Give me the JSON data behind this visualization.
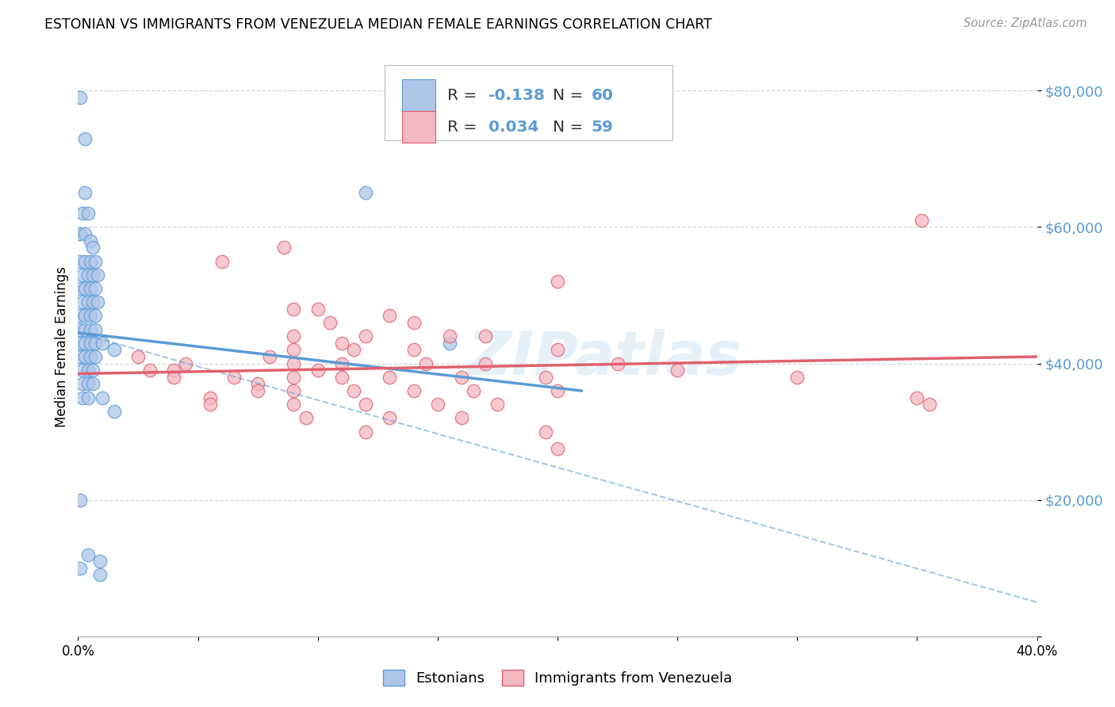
{
  "title": "ESTONIAN VS IMMIGRANTS FROM VENEZUELA MEDIAN FEMALE EARNINGS CORRELATION CHART",
  "source": "Source: ZipAtlas.com",
  "ylabel": "Median Female Earnings",
  "y_ticks": [
    0,
    20000,
    40000,
    60000,
    80000
  ],
  "y_tick_labels": [
    "",
    "$20,000",
    "$40,000",
    "$60,000",
    "$80,000"
  ],
  "x_min": 0.0,
  "x_max": 0.4,
  "y_min": 0,
  "y_max": 85000,
  "legend_labels": [
    "Estonians",
    "Immigrants from Venezuela"
  ],
  "blue_color": "#5b9bd5",
  "pink_color": "#e06070",
  "blue_fill": "#aec6e8",
  "pink_fill": "#f4b8c1",
  "blue_R": "-0.138",
  "blue_N": "60",
  "pink_R": "0.034",
  "pink_N": "59",
  "trend_blue_x0": 0.0,
  "trend_blue_y0": 44500,
  "trend_blue_x1": 0.21,
  "trend_blue_y1": 36000,
  "trend_dashed_x0": 0.0,
  "trend_dashed_y0": 44500,
  "trend_dashed_x1": 0.4,
  "trend_dashed_y1": 5000,
  "trend_pink_x0": 0.0,
  "trend_pink_y0": 38500,
  "trend_pink_x1": 0.4,
  "trend_pink_y1": 41000,
  "watermark": "ZIPatlas",
  "blue_points": [
    [
      0.001,
      79000
    ],
    [
      0.003,
      73000
    ],
    [
      0.003,
      65000
    ],
    [
      0.002,
      62000
    ],
    [
      0.004,
      62000
    ],
    [
      0.001,
      59000
    ],
    [
      0.003,
      59000
    ],
    [
      0.005,
      58000
    ],
    [
      0.006,
      57000
    ],
    [
      0.001,
      55000
    ],
    [
      0.003,
      55000
    ],
    [
      0.005,
      55000
    ],
    [
      0.007,
      55000
    ],
    [
      0.002,
      53000
    ],
    [
      0.004,
      53000
    ],
    [
      0.006,
      53000
    ],
    [
      0.008,
      53000
    ],
    [
      0.001,
      51000
    ],
    [
      0.003,
      51000
    ],
    [
      0.005,
      51000
    ],
    [
      0.007,
      51000
    ],
    [
      0.002,
      49000
    ],
    [
      0.004,
      49000
    ],
    [
      0.006,
      49000
    ],
    [
      0.008,
      49000
    ],
    [
      0.001,
      47000
    ],
    [
      0.003,
      47000
    ],
    [
      0.005,
      47000
    ],
    [
      0.007,
      47000
    ],
    [
      0.001,
      45000
    ],
    [
      0.003,
      45000
    ],
    [
      0.005,
      45000
    ],
    [
      0.007,
      45000
    ],
    [
      0.001,
      43000
    ],
    [
      0.003,
      43000
    ],
    [
      0.005,
      43000
    ],
    [
      0.007,
      43000
    ],
    [
      0.001,
      41000
    ],
    [
      0.003,
      41000
    ],
    [
      0.005,
      41000
    ],
    [
      0.007,
      41000
    ],
    [
      0.002,
      39000
    ],
    [
      0.004,
      39000
    ],
    [
      0.006,
      39000
    ],
    [
      0.002,
      37000
    ],
    [
      0.004,
      37000
    ],
    [
      0.006,
      37000
    ],
    [
      0.002,
      35000
    ],
    [
      0.004,
      35000
    ],
    [
      0.01,
      43000
    ],
    [
      0.015,
      42000
    ],
    [
      0.01,
      35000
    ],
    [
      0.015,
      33000
    ],
    [
      0.001,
      20000
    ],
    [
      0.004,
      12000
    ],
    [
      0.009,
      11000
    ],
    [
      0.001,
      10000
    ],
    [
      0.009,
      9000
    ],
    [
      0.12,
      65000
    ],
    [
      0.155,
      43000
    ]
  ],
  "pink_points": [
    [
      0.352,
      61000
    ],
    [
      0.086,
      57000
    ],
    [
      0.06,
      55000
    ],
    [
      0.2,
      52000
    ],
    [
      0.09,
      48000
    ],
    [
      0.1,
      48000
    ],
    [
      0.13,
      47000
    ],
    [
      0.105,
      46000
    ],
    [
      0.14,
      46000
    ],
    [
      0.09,
      44000
    ],
    [
      0.12,
      44000
    ],
    [
      0.155,
      44000
    ],
    [
      0.17,
      44000
    ],
    [
      0.09,
      42000
    ],
    [
      0.115,
      42000
    ],
    [
      0.14,
      42000
    ],
    [
      0.2,
      42000
    ],
    [
      0.09,
      40000
    ],
    [
      0.11,
      40000
    ],
    [
      0.145,
      40000
    ],
    [
      0.17,
      40000
    ],
    [
      0.225,
      40000
    ],
    [
      0.09,
      38000
    ],
    [
      0.11,
      38000
    ],
    [
      0.13,
      38000
    ],
    [
      0.16,
      38000
    ],
    [
      0.195,
      38000
    ],
    [
      0.09,
      36000
    ],
    [
      0.115,
      36000
    ],
    [
      0.14,
      36000
    ],
    [
      0.165,
      36000
    ],
    [
      0.2,
      36000
    ],
    [
      0.09,
      34000
    ],
    [
      0.12,
      34000
    ],
    [
      0.15,
      34000
    ],
    [
      0.175,
      34000
    ],
    [
      0.095,
      32000
    ],
    [
      0.13,
      32000
    ],
    [
      0.16,
      32000
    ],
    [
      0.12,
      30000
    ],
    [
      0.195,
      30000
    ],
    [
      0.2,
      27500
    ],
    [
      0.045,
      40000
    ],
    [
      0.065,
      38000
    ],
    [
      0.075,
      37000
    ],
    [
      0.075,
      36000
    ],
    [
      0.055,
      35000
    ],
    [
      0.055,
      34000
    ],
    [
      0.04,
      39000
    ],
    [
      0.04,
      38000
    ],
    [
      0.08,
      41000
    ],
    [
      0.1,
      39000
    ],
    [
      0.11,
      43000
    ],
    [
      0.025,
      41000
    ],
    [
      0.03,
      39000
    ],
    [
      0.35,
      35000
    ],
    [
      0.355,
      34000
    ],
    [
      0.3,
      38000
    ],
    [
      0.25,
      39000
    ]
  ]
}
